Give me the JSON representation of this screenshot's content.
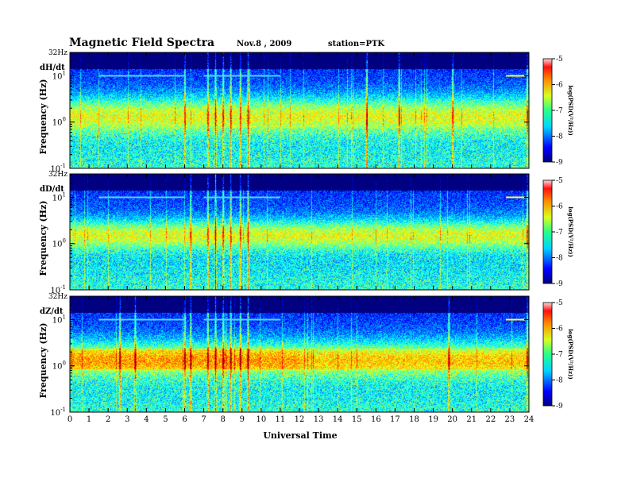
{
  "header": {
    "title": "Magnetic Field Spectra",
    "date": "Nov.8 , 2009",
    "station": "station=PTK"
  },
  "chart_data": {
    "type": "heatmap",
    "title": "Magnetic Field Spectra",
    "xlabel": "Universal Time",
    "ylabel": "Frequency (Hz)",
    "xlim": [
      0,
      24
    ],
    "x_ticks": [
      "0",
      "1",
      "2",
      "3",
      "4",
      "5",
      "6",
      "7",
      "8",
      "9",
      "10",
      "11",
      "12",
      "13",
      "14",
      "15",
      "16",
      "17",
      "18",
      "19",
      "20",
      "21",
      "22",
      "23",
      "24"
    ],
    "ylim": [
      0.1,
      32
    ],
    "y_scale": "log",
    "y_top_label": "32Hz",
    "y_ticks": [
      {
        "base": "10",
        "exp": "1"
      },
      {
        "base": "10",
        "exp": "0"
      },
      {
        "base": "10",
        "exp": "-1"
      }
    ],
    "colorbar": {
      "label": "log(PSD(V²/Hz))",
      "range": [
        -9,
        -5
      ],
      "ticks": [
        "-5",
        "-6",
        "-7",
        "-8",
        "-9"
      ]
    },
    "panels": [
      {
        "channel": "dH/dt",
        "peak_band_hz": [
          0.8,
          2.5
        ],
        "line_10hz_hours": [
          [
            1.5,
            6.0
          ],
          [
            7.0,
            11.0
          ],
          [
            22.8,
            23.8
          ]
        ],
        "noise_bursts_hours": [
          6.0,
          7.2,
          7.6,
          8.0,
          8.4,
          8.9,
          9.3,
          15.5,
          17.2,
          20.0,
          23.9
        ]
      },
      {
        "channel": "dD/dt",
        "peak_band_hz": [
          1.0,
          2.5
        ],
        "line_10hz_hours": [
          [
            1.5,
            6.0
          ],
          [
            7.0,
            11.0
          ],
          [
            22.8,
            23.8
          ]
        ],
        "noise_bursts_hours": [
          6.3,
          7.2,
          7.6,
          8.0,
          8.4,
          8.9,
          9.3,
          23.9
        ]
      },
      {
        "channel": "dZ/dt",
        "peak_band_hz": [
          0.8,
          2.5
        ],
        "line_10hz_hours": [
          [
            1.5,
            6.0
          ],
          [
            7.0,
            11.0
          ],
          [
            22.8,
            23.8
          ]
        ],
        "noise_bursts_hours": [
          2.6,
          3.4,
          6.0,
          6.3,
          7.2,
          7.6,
          8.0,
          8.4,
          8.9,
          9.3,
          19.8,
          23.9
        ]
      }
    ]
  }
}
